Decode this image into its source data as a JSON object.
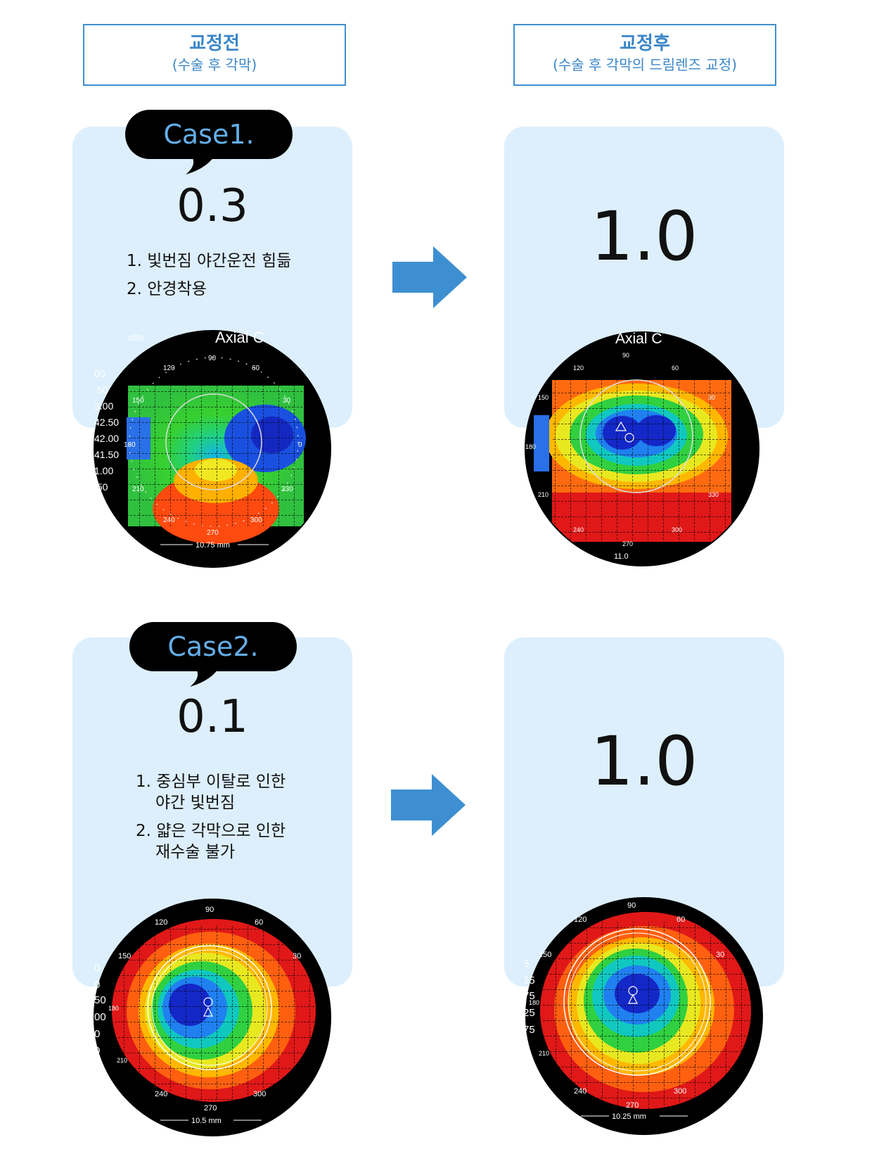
{
  "header": {
    "before_title": "교정전",
    "before_sub": "(수술 후 각막)",
    "after_title": "교정후",
    "after_sub": "(수술 후 각막의 드림렌즈 교정)"
  },
  "cases": [
    {
      "label": "Case1.",
      "before_vision": "0.3",
      "items": [
        {
          "line1": "1. 빛번짐 야간운전 힘듦",
          "line2": ""
        },
        {
          "line1": "2. 안경착용",
          "line2": ""
        }
      ],
      "after_vision": "1.0",
      "before_map": {
        "title_left": "ette",
        "title": "Axial C",
        "ticks": [
          "90",
          "120",
          "60",
          "150",
          "30",
          "180",
          "0",
          "210",
          "330",
          "240",
          "300",
          "270"
        ],
        "scale": [
          "00",
          ".50",
          "3.00",
          "42.50",
          "42.00",
          "41.50",
          "1.00",
          ".50",
          "00"
        ],
        "measure": "10.75 mm"
      },
      "after_map": {
        "title": "Axial C",
        "ticks": [
          "90",
          "120",
          "60",
          "150",
          "30",
          "180",
          "210",
          "330",
          "240",
          "300",
          "270"
        ],
        "measure": "11.0"
      }
    },
    {
      "label": "Case2.",
      "before_vision": "0.1",
      "items": [
        {
          "line1": "1. 중심부 이탈로 인한",
          "line2": "야간 빛번짐"
        },
        {
          "line1": "2. 얇은 각막으로 인한",
          "line2": "재수술 불가"
        }
      ],
      "after_vision": "1.0",
      "before_map": {
        "ticks": [
          "90",
          "120",
          "60",
          "150",
          "30",
          "180",
          "210",
          "240",
          "300",
          "270"
        ],
        "scale": [
          "0",
          "0",
          "50",
          "00",
          "0",
          "0"
        ],
        "measure": "10.5 mm"
      },
      "after_map": {
        "ticks": [
          "90",
          "120",
          "60",
          "150",
          "30",
          "180",
          "210",
          "240",
          "300",
          "270"
        ],
        "scale": [
          "5",
          "25",
          "75",
          "25",
          "75",
          "5"
        ],
        "measure": "10.25 mm"
      }
    }
  ],
  "colors": {
    "accent": "#3a86c8",
    "panel": "#ddeffc",
    "bubble_text": "#64aee8",
    "arrow": "#3d8fd1"
  }
}
